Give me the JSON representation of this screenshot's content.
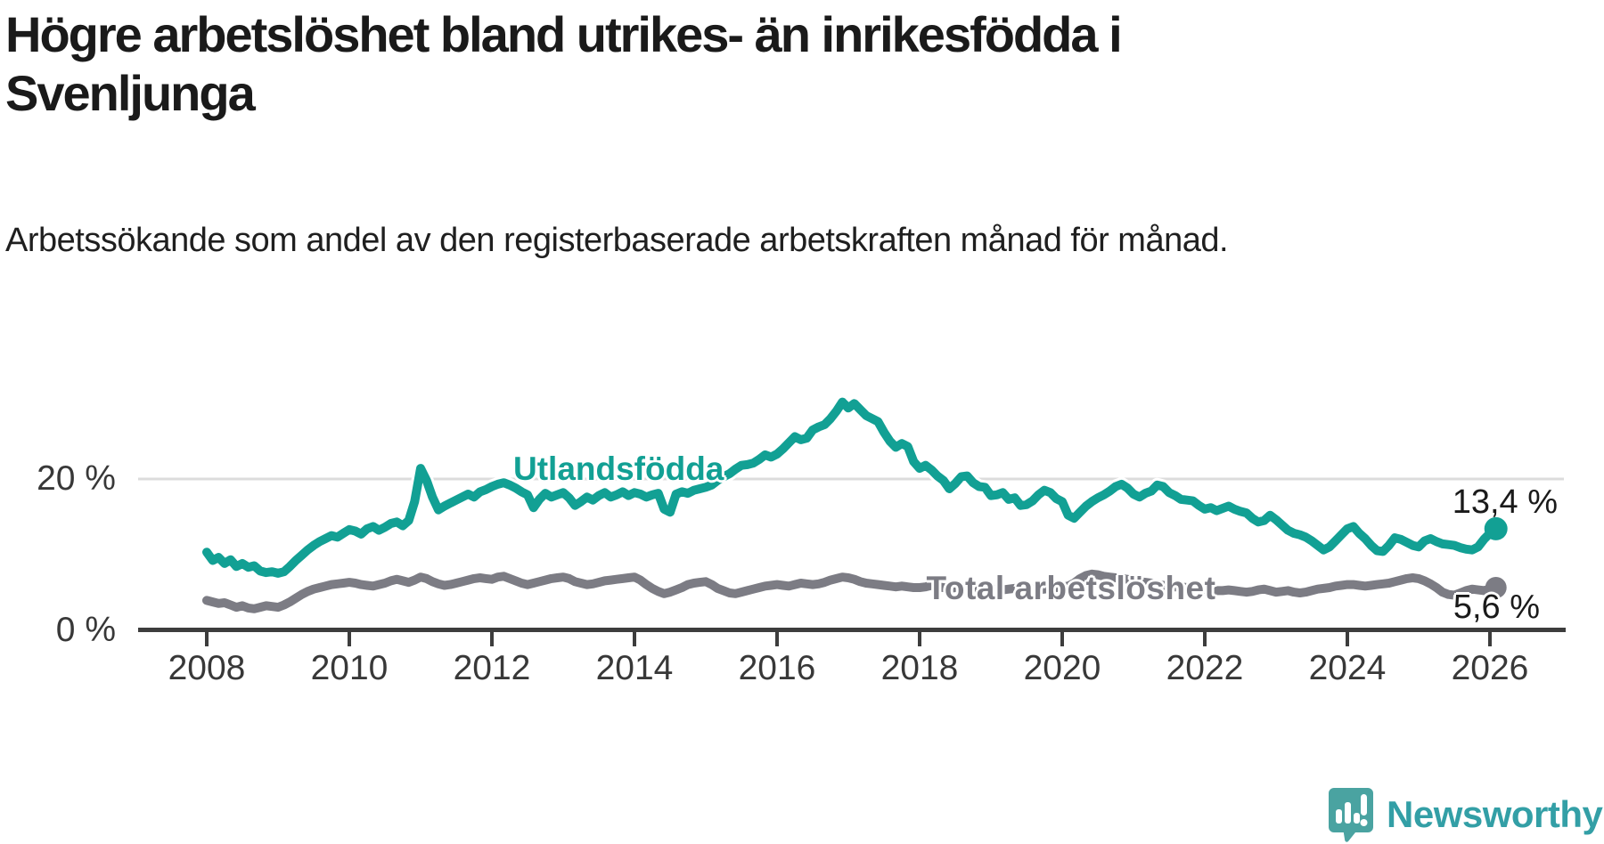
{
  "header": {
    "title": "Högre arbetslöshet bland utrikes- än inrikesfödda i Svenljunga",
    "subtitle": "Arbetssökande som andel av den registerbaserade arbetskraften månad för månad."
  },
  "footer": {
    "brand_name": "Newsworthy",
    "brand_icon": "newsworthy-speech-bubble-bar-chart-icon",
    "brand_text_color": "#339fa6",
    "brand_icon_color": "#4aa3a1"
  },
  "chart_data": {
    "type": "line",
    "unit": "%",
    "grid": "horizontal-only",
    "xlim": [
      2007.95,
      2026.45
    ],
    "ylim": [
      0,
      33
    ],
    "x_ticks": [
      2008,
      2010,
      2012,
      2014,
      2016,
      2018,
      2020,
      2022,
      2024,
      2026
    ],
    "x_tick_labels": [
      "2008",
      "2010",
      "2012",
      "2014",
      "2016",
      "2018",
      "2020",
      "2022",
      "2024",
      "2026"
    ],
    "y_ticks": [
      {
        "value": 0,
        "label": "0 %"
      },
      {
        "value": 20,
        "label": "20 %"
      }
    ],
    "series": [
      {
        "name": "Utlandsfödda",
        "color": "#12a094",
        "start_year": 2008,
        "points_per_year": 12,
        "end_value": 13.4,
        "end_label": "13,4 %",
        "values": [
          10.3,
          9.2,
          9.6,
          8.8,
          9.3,
          8.4,
          8.8,
          8.3,
          8.5,
          7.8,
          7.6,
          7.7,
          7.5,
          7.7,
          8.4,
          9.2,
          9.9,
          10.6,
          11.2,
          11.7,
          12.1,
          12.5,
          12.3,
          12.8,
          13.3,
          13.1,
          12.7,
          13.4,
          13.7,
          13.2,
          13.6,
          14.1,
          14.3,
          13.8,
          14.5,
          17.0,
          21.4,
          19.8,
          17.6,
          15.9,
          16.4,
          16.8,
          17.2,
          17.6,
          18.0,
          17.6,
          18.3,
          18.6,
          19.0,
          19.3,
          19.5,
          19.2,
          18.8,
          18.3,
          17.9,
          16.2,
          17.3,
          18.1,
          17.6,
          17.9,
          18.2,
          17.5,
          16.5,
          17.0,
          17.6,
          17.2,
          17.8,
          18.2,
          17.6,
          17.9,
          18.3,
          17.8,
          18.2,
          18.0,
          17.6,
          17.9,
          18.1,
          16.0,
          15.6,
          18.0,
          18.3,
          18.1,
          18.5,
          18.7,
          18.9,
          19.2,
          19.8,
          20.3,
          20.7,
          21.3,
          21.8,
          21.9,
          22.1,
          22.6,
          23.2,
          22.9,
          23.3,
          24.0,
          24.8,
          25.6,
          25.2,
          25.4,
          26.5,
          26.9,
          27.2,
          28.0,
          29.0,
          30.2,
          29.4,
          30.0,
          29.2,
          28.4,
          28.0,
          27.6,
          26.2,
          25.0,
          24.2,
          24.7,
          24.3,
          22.3,
          21.4,
          21.8,
          21.2,
          20.4,
          19.8,
          18.7,
          19.4,
          20.3,
          20.4,
          19.5,
          19.0,
          18.9,
          17.8,
          17.9,
          18.2,
          17.3,
          17.5,
          16.5,
          16.6,
          17.1,
          17.9,
          18.5,
          18.2,
          17.4,
          17.0,
          15.2,
          14.8,
          15.6,
          16.4,
          17.0,
          17.5,
          17.9,
          18.4,
          19.0,
          19.3,
          18.8,
          18.0,
          17.6,
          18.1,
          18.4,
          19.2,
          19.0,
          18.2,
          17.8,
          17.3,
          17.2,
          17.1,
          16.5,
          16.0,
          16.2,
          15.8,
          16.1,
          16.4,
          16.0,
          15.7,
          15.5,
          14.8,
          14.3,
          14.5,
          15.2,
          14.6,
          13.9,
          13.2,
          12.8,
          12.6,
          12.3,
          11.8,
          11.2,
          10.6,
          11.0,
          11.8,
          12.6,
          13.4,
          13.7,
          12.8,
          12.1,
          11.2,
          10.5,
          10.4,
          11.2,
          12.2,
          12.0,
          11.6,
          11.2,
          11.0,
          11.8,
          12.1,
          11.7,
          11.4,
          11.3,
          11.2,
          10.9,
          10.7,
          10.6,
          11.0,
          12.0,
          12.8,
          13.4
        ]
      },
      {
        "name": "Total arbetslöshet",
        "color": "#7c7c84",
        "start_year": 2008,
        "points_per_year": 12,
        "end_value": 5.6,
        "end_label": "5,6 %",
        "values": [
          3.9,
          3.7,
          3.5,
          3.6,
          3.3,
          3.0,
          3.2,
          2.9,
          2.8,
          3.0,
          3.2,
          3.1,
          3.0,
          3.3,
          3.7,
          4.2,
          4.7,
          5.1,
          5.4,
          5.6,
          5.8,
          6.0,
          6.1,
          6.2,
          6.3,
          6.2,
          6.0,
          5.9,
          5.8,
          6.0,
          6.2,
          6.5,
          6.7,
          6.5,
          6.3,
          6.6,
          7.0,
          6.8,
          6.4,
          6.1,
          5.9,
          6.0,
          6.2,
          6.4,
          6.6,
          6.8,
          6.9,
          6.8,
          6.7,
          7.0,
          7.1,
          6.8,
          6.5,
          6.2,
          6.0,
          6.2,
          6.4,
          6.6,
          6.8,
          6.9,
          7.0,
          6.8,
          6.4,
          6.2,
          6.0,
          6.1,
          6.3,
          6.5,
          6.6,
          6.7,
          6.8,
          6.9,
          7.0,
          6.6,
          6.0,
          5.5,
          5.1,
          4.8,
          5.0,
          5.3,
          5.6,
          6.0,
          6.2,
          6.3,
          6.4,
          6.0,
          5.5,
          5.2,
          4.9,
          4.8,
          5.0,
          5.2,
          5.4,
          5.6,
          5.8,
          5.9,
          6.0,
          5.9,
          5.8,
          6.0,
          6.2,
          6.1,
          6.0,
          6.1,
          6.3,
          6.6,
          6.8,
          7.0,
          6.9,
          6.7,
          6.4,
          6.2,
          6.1,
          6.0,
          5.9,
          5.8,
          5.7,
          5.8,
          5.7,
          5.6,
          5.6,
          5.7,
          5.9,
          5.7,
          5.6,
          5.5,
          5.6,
          5.7,
          5.8,
          5.6,
          5.5,
          5.5,
          5.4,
          5.3,
          5.3,
          5.4,
          5.5,
          5.6,
          5.5,
          5.4,
          5.3,
          5.4,
          5.5,
          5.6,
          5.7,
          5.8,
          6.2,
          6.8,
          7.2,
          7.4,
          7.3,
          7.1,
          7.0,
          6.9,
          6.8,
          6.7,
          6.6,
          6.4,
          6.3,
          6.2,
          6.0,
          5.9,
          5.8,
          5.7,
          5.7,
          5.6,
          5.6,
          5.5,
          5.4,
          5.3,
          5.2,
          5.2,
          5.3,
          5.2,
          5.1,
          5.0,
          5.1,
          5.3,
          5.4,
          5.2,
          5.0,
          5.1,
          5.2,
          5.0,
          4.9,
          5.0,
          5.2,
          5.4,
          5.5,
          5.6,
          5.8,
          5.9,
          6.0,
          6.0,
          5.9,
          5.8,
          5.9,
          6.0,
          6.1,
          6.2,
          6.4,
          6.6,
          6.8,
          6.9,
          6.8,
          6.5,
          6.1,
          5.6,
          5.0,
          4.7,
          4.6,
          4.9,
          5.2,
          5.4,
          5.3,
          5.2,
          5.4,
          5.6
        ]
      }
    ]
  }
}
